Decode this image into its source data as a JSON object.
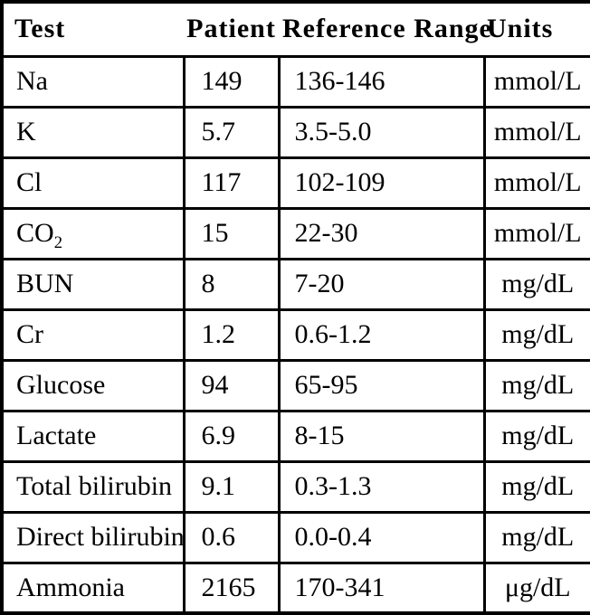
{
  "meta": {
    "background_color": "#ffffff",
    "border_color": "#000000",
    "text_color": "#000000"
  },
  "table": {
    "headers": {
      "test": "Test",
      "patient": "Patient",
      "range": "Reference Range",
      "units": "Units"
    },
    "rows": [
      {
        "test": "Na",
        "patient": "149",
        "range": "136-146",
        "units": "mmol/L"
      },
      {
        "test": "K",
        "patient": "5.7",
        "range": "3.5-5.0",
        "units": "mmol/L"
      },
      {
        "test": "Cl",
        "patient": "117",
        "range": "102-109",
        "units": "mmol/L"
      },
      {
        "test": "CO",
        "test_sub": "2",
        "patient": "15",
        "range": "22-30",
        "units": "mmol/L"
      },
      {
        "test": "BUN",
        "patient": "8",
        "range": "7-20",
        "units": "mg/dL"
      },
      {
        "test": "Cr",
        "patient": "1.2",
        "range": "0.6-1.2",
        "units": "mg/dL"
      },
      {
        "test": "Glucose",
        "patient": "94",
        "range": "65-95",
        "units": "mg/dL"
      },
      {
        "test": "Lactate",
        "patient": "6.9",
        "range": "8-15",
        "units": "mg/dL"
      },
      {
        "test": "Total bilirubin",
        "patient": "9.1",
        "range": "0.3-1.3",
        "units": "mg/dL"
      },
      {
        "test": "Direct bilirubin",
        "patient": "0.6",
        "range": "0.0-0.4",
        "units": "mg/dL"
      },
      {
        "test": "Ammonia",
        "patient": "2165",
        "range": "170-341",
        "units": "μg/dL"
      }
    ]
  }
}
